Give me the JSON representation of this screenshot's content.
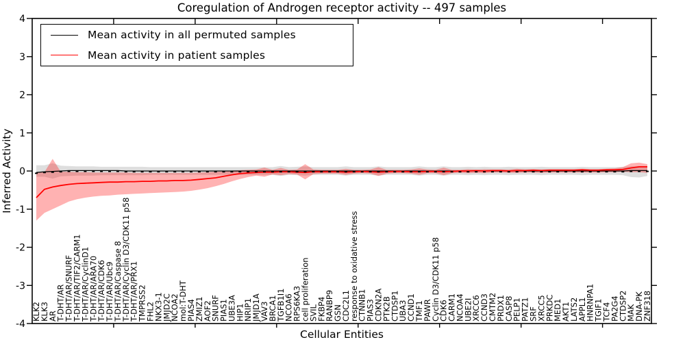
{
  "title": "Coregulation of Androgen receptor activity -- 497 samples",
  "axes": {
    "xlabel": "Cellular Entities",
    "ylabel": "Inferred Activity"
  },
  "legend": {
    "items": [
      {
        "label": "Mean activity in all permuted samples",
        "color": "#000000"
      },
      {
        "label": "Mean activity in patient samples",
        "color": "#ff0000"
      }
    ]
  },
  "colors": {
    "patient_line": "#ff0000",
    "permuted_line": "#000000",
    "patient_band": "rgba(255,0,0,0.30)",
    "permuted_band": "rgba(105,105,105,0.22)",
    "background": "#ffffff",
    "spine": "#000000"
  },
  "chart_data": {
    "type": "line",
    "title": "Coregulation of Androgen receptor activity -- 497 samples",
    "xlabel": "Cellular Entities",
    "ylabel": "Inferred Activity",
    "ylim": [
      -4,
      4
    ],
    "yticks": [
      -4,
      -3,
      -2,
      -1,
      0,
      1,
      2,
      3,
      4
    ],
    "x_major_tick_positions": [
      10,
      20,
      30,
      40,
      50,
      60,
      70
    ],
    "grid": false,
    "legend_position": "upper left",
    "categories": [
      "KLK2",
      "KLK3",
      "AR",
      "T-DHT/AR",
      "T-DHT/AR/SNURF",
      "T-DHT/AR/TIF2/CARM1",
      "T-DHT/AR/CyclinD1",
      "T-DHT/AR/ARA70",
      "T-DHT/AR/CDK6",
      "T-DHT/AR/Ubc9",
      "T-DHT/AR/Caspase 8",
      "T-DHT/AR/Cyclin D3/CDK11 p58",
      "T-DHT/AR/PRX1",
      "TMPRSS2",
      "FHL2",
      "NKX3-1",
      "JMJD2C",
      "NCOA2",
      "mol:T-DHT",
      "PIAS4",
      "ZMIZ1",
      "AOF2",
      "SNURF",
      "PIAS1",
      "UBE3A",
      "HIP1",
      "NRIP1",
      "JMJD1A",
      "VAV3",
      "BRCA1",
      "TGFB1I1",
      "NCOA6",
      "RPS6KA3",
      "cell proliferation",
      "SVIL",
      "FKBP4",
      "RANBP9",
      "GSN",
      "CDC2L1",
      "response to oxidative stress",
      "CTNNB1",
      "PIAS3",
      "CDKN2A",
      "PTK2B",
      "CTDSP1",
      "UBA3",
      "CCND1",
      "TMF1",
      "PAWR",
      "Cyclin D3/CDK11 p58",
      "CDK6",
      "CARM1",
      "NCOA4",
      "UBE2I",
      "XRCC6",
      "CCND3",
      "CMTM2",
      "PRDX1",
      "CASP8",
      "PELP1",
      "PATZ1",
      "SRF",
      "XRCC5",
      "PRKDC",
      "MED1",
      "AKT1",
      "LATS2",
      "APPL1",
      "HNRNPA1",
      "TGIF1",
      "TCF4",
      "PA2G4",
      "CTDSP2",
      "MAK",
      "DNA-PK",
      "ZNF318"
    ],
    "series": [
      {
        "name": "Mean activity in all permuted samples",
        "color": "#000000",
        "band_color": "rgba(105,105,105,0.22)",
        "values": [
          -0.04,
          -0.02,
          -0.01,
          0,
          0.01,
          0.01,
          0.01,
          0.01,
          0.01,
          0.01,
          0.01,
          0,
          0,
          0,
          0,
          0,
          0,
          0,
          0,
          0,
          0,
          0,
          0,
          0,
          0,
          0,
          0,
          0,
          0,
          0,
          0,
          0,
          0,
          0,
          0,
          0,
          0,
          0,
          0,
          0,
          0,
          0,
          0,
          0,
          0,
          0,
          0,
          0,
          0,
          0,
          0,
          0,
          0,
          0,
          0,
          0,
          0,
          0,
          0,
          0,
          0,
          0,
          0,
          0,
          0,
          0,
          0,
          0,
          0,
          0,
          0,
          0,
          0,
          0.01,
          0.01,
          0.01
        ],
        "band_lo": [
          -0.15,
          -0.15,
          -0.2,
          -0.14,
          -0.13,
          -0.12,
          -0.12,
          -0.12,
          -0.11,
          -0.11,
          -0.11,
          -0.11,
          -0.11,
          -0.11,
          -0.1,
          -0.1,
          -0.1,
          -0.1,
          -0.1,
          -0.1,
          -0.1,
          -0.1,
          -0.1,
          -0.1,
          -0.1,
          -0.1,
          -0.1,
          -0.1,
          -0.1,
          -0.1,
          -0.13,
          -0.1,
          -0.11,
          -0.12,
          -0.1,
          -0.1,
          -0.1,
          -0.1,
          -0.12,
          -0.1,
          -0.1,
          -0.1,
          -0.12,
          -0.1,
          -0.1,
          -0.1,
          -0.1,
          -0.12,
          -0.1,
          -0.1,
          -0.12,
          -0.1,
          -0.1,
          -0.11,
          -0.1,
          -0.11,
          -0.1,
          -0.1,
          -0.11,
          -0.1,
          -0.1,
          -0.1,
          -0.11,
          -0.1,
          -0.1,
          -0.1,
          -0.1,
          -0.11,
          -0.1,
          -0.1,
          -0.1,
          -0.1,
          -0.11,
          -0.16,
          -0.17,
          -0.13
        ],
        "band_hi": [
          0.15,
          0.15,
          0.2,
          0.14,
          0.13,
          0.12,
          0.12,
          0.12,
          0.11,
          0.11,
          0.11,
          0.11,
          0.11,
          0.11,
          0.1,
          0.1,
          0.1,
          0.1,
          0.1,
          0.1,
          0.1,
          0.1,
          0.1,
          0.1,
          0.1,
          0.1,
          0.1,
          0.1,
          0.1,
          0.1,
          0.13,
          0.1,
          0.11,
          0.12,
          0.1,
          0.1,
          0.1,
          0.1,
          0.12,
          0.1,
          0.1,
          0.1,
          0.12,
          0.1,
          0.1,
          0.1,
          0.1,
          0.12,
          0.1,
          0.1,
          0.12,
          0.1,
          0.1,
          0.11,
          0.1,
          0.11,
          0.1,
          0.1,
          0.11,
          0.1,
          0.1,
          0.1,
          0.11,
          0.1,
          0.1,
          0.1,
          0.1,
          0.11,
          0.1,
          0.1,
          0.1,
          0.1,
          0.11,
          0.12,
          0.13,
          0.13
        ]
      },
      {
        "name": "Mean activity in patient samples",
        "color": "#ff0000",
        "band_color": "rgba(255,0,0,0.30)",
        "values": [
          -0.7,
          -0.48,
          -0.42,
          -0.38,
          -0.35,
          -0.33,
          -0.32,
          -0.31,
          -0.3,
          -0.29,
          -0.29,
          -0.28,
          -0.28,
          -0.27,
          -0.27,
          -0.26,
          -0.26,
          -0.25,
          -0.25,
          -0.24,
          -0.22,
          -0.2,
          -0.18,
          -0.14,
          -0.1,
          -0.07,
          -0.05,
          -0.04,
          -0.03,
          -0.03,
          -0.02,
          -0.02,
          -0.03,
          -0.04,
          -0.02,
          -0.02,
          -0.02,
          -0.02,
          -0.03,
          -0.02,
          -0.01,
          -0.02,
          -0.03,
          -0.02,
          -0.01,
          -0.01,
          -0.02,
          -0.02,
          -0.01,
          -0.01,
          -0.02,
          -0.01,
          0,
          0,
          0.01,
          0,
          0.01,
          0.01,
          0,
          0.01,
          0.01,
          0.02,
          0.01,
          0.02,
          0.02,
          0.02,
          0.02,
          0.03,
          0.02,
          0.02,
          0.03,
          0.03,
          0.04,
          0.08,
          0.11,
          0.11
        ],
        "band_lo": [
          -1.3,
          -1.1,
          -1.0,
          -0.9,
          -0.8,
          -0.74,
          -0.7,
          -0.67,
          -0.65,
          -0.64,
          -0.62,
          -0.61,
          -0.6,
          -0.59,
          -0.58,
          -0.57,
          -0.56,
          -0.55,
          -0.54,
          -0.52,
          -0.49,
          -0.45,
          -0.4,
          -0.34,
          -0.27,
          -0.21,
          -0.16,
          -0.12,
          -0.15,
          -0.09,
          -0.11,
          -0.08,
          -0.09,
          -0.22,
          -0.08,
          -0.07,
          -0.07,
          -0.07,
          -0.1,
          -0.07,
          -0.06,
          -0.07,
          -0.13,
          -0.07,
          -0.06,
          -0.06,
          -0.07,
          -0.1,
          -0.06,
          -0.06,
          -0.11,
          -0.06,
          -0.05,
          -0.06,
          -0.05,
          -0.06,
          -0.04,
          -0.04,
          -0.05,
          -0.05,
          -0.04,
          -0.04,
          -0.05,
          -0.04,
          -0.04,
          -0.04,
          -0.04,
          -0.04,
          -0.04,
          -0.04,
          -0.03,
          -0.03,
          -0.02,
          -0.03,
          -0.03,
          -0.05
        ],
        "band_hi": [
          -0.05,
          -0.03,
          0.32,
          -0.02,
          -0.02,
          -0.03,
          -0.03,
          -0.04,
          -0.04,
          -0.04,
          -0.04,
          -0.04,
          -0.05,
          -0.05,
          -0.05,
          -0.05,
          -0.05,
          -0.05,
          -0.05,
          -0.05,
          -0.04,
          -0.03,
          -0.02,
          -0.01,
          0.01,
          0.02,
          0.03,
          0.04,
          0.09,
          0.03,
          0.08,
          0.03,
          0.04,
          0.18,
          0.04,
          0.03,
          0.03,
          0.03,
          0.06,
          0.03,
          0.03,
          0.04,
          0.1,
          0.03,
          0.03,
          0.03,
          0.04,
          0.07,
          0.04,
          0.03,
          0.09,
          0.03,
          0.03,
          0.05,
          0.03,
          0.05,
          0.04,
          0.04,
          0.04,
          0.06,
          0.04,
          0.05,
          0.04,
          0.05,
          0.05,
          0.05,
          0.05,
          0.06,
          0.05,
          0.05,
          0.06,
          0.07,
          0.1,
          0.2,
          0.22,
          0.18
        ]
      }
    ]
  }
}
